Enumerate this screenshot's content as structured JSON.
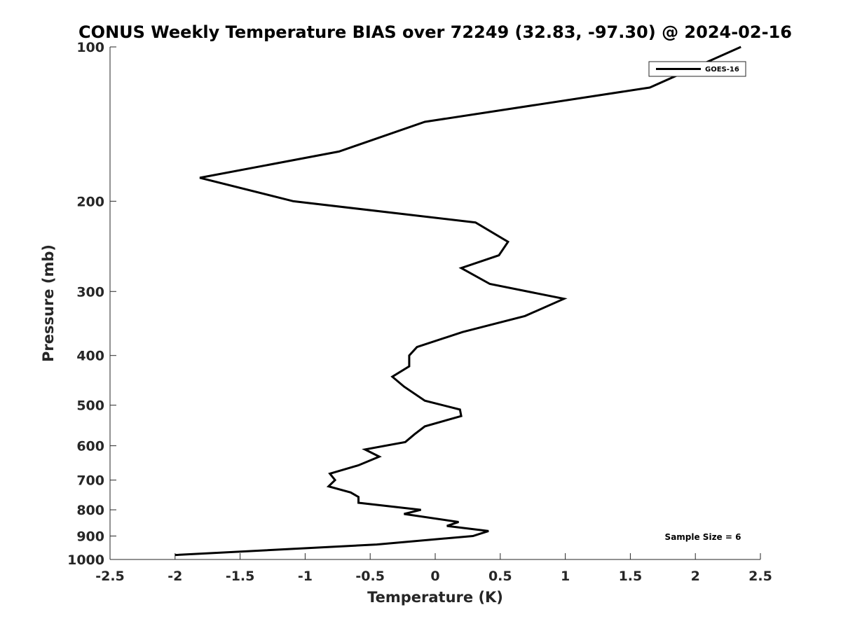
{
  "chart_data": {
    "type": "line",
    "title": "CONUS Weekly Temperature BIAS over 72249 (32.83, -97.30) @ 2024-02-16",
    "xlabel": "Temperature (K)",
    "ylabel": "Pressure (mb)",
    "xlim": [
      -2.5,
      2.5
    ],
    "ylim": [
      100,
      1000
    ],
    "yscale": "log",
    "y_reversed": true,
    "x_ticks": [
      "-2.5",
      "-2",
      "-1.5",
      "-1",
      "-0.5",
      "0",
      "0.5",
      "1",
      "1.5",
      "2",
      "2.5"
    ],
    "y_ticks": [
      "100",
      "200",
      "300",
      "400",
      "500",
      "600",
      "700",
      "800",
      "900",
      "1000"
    ],
    "grid": false,
    "legend": {
      "position": "top-right",
      "entries": [
        "GOES-16"
      ]
    },
    "annotation": "Sample Size = 6",
    "series": [
      {
        "name": "GOES-16",
        "color": "#000000",
        "x": [
          2.35,
          1.65,
          -0.08,
          -0.74,
          -1.81,
          -1.09,
          0.31,
          0.56,
          0.49,
          0.2,
          0.42,
          0.99,
          0.69,
          0.21,
          -0.14,
          -0.2,
          -0.2,
          -0.33,
          -0.24,
          -0.08,
          0.19,
          0.2,
          -0.08,
          -0.16,
          -0.23,
          -0.54,
          -0.43,
          -0.59,
          -0.81,
          -0.77,
          -0.82,
          -0.65,
          -0.59,
          -0.59,
          -0.11,
          -0.24,
          0.18,
          0.09,
          0.41,
          0.29,
          -0.45,
          -2.0
        ],
        "y": [
          100,
          120,
          140,
          160,
          180,
          200,
          220,
          240,
          255,
          270,
          290,
          310,
          335,
          360,
          385,
          400,
          420,
          440,
          460,
          490,
          510,
          525,
          550,
          570,
          590,
          610,
          630,
          655,
          680,
          700,
          720,
          740,
          755,
          775,
          800,
          815,
          845,
          860,
          880,
          900,
          935,
          980
        ]
      }
    ]
  }
}
